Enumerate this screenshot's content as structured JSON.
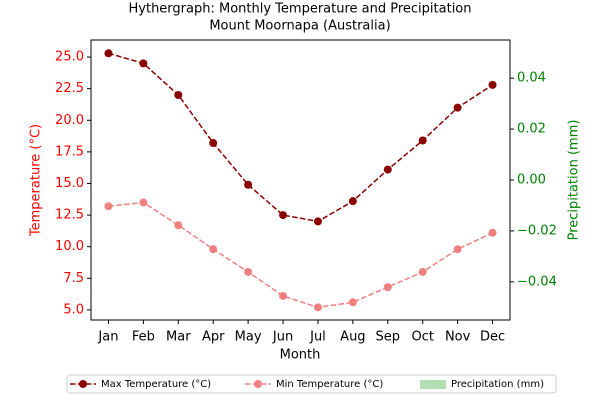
{
  "chart_data": {
    "type": "line",
    "title": "Hythergraph: Monthly Temperature and Precipitation",
    "subtitle": "Mount Moornapa (Australia)",
    "x_label": "Month",
    "y_label": "Temperature (°C)",
    "y2_label": "Precipitation (mm)",
    "y_color": "#ff0000",
    "y2_color": "#008000",
    "categories": [
      "Jan",
      "Feb",
      "Mar",
      "Apr",
      "May",
      "Jun",
      "Jul",
      "Aug",
      "Sep",
      "Oct",
      "Nov",
      "Dec"
    ],
    "series": [
      {
        "name": "Max Temperature (°C)",
        "color": "#8b0000",
        "linestyle": "dashed",
        "marker": "circle",
        "values": [
          25.3,
          24.5,
          22.0,
          18.2,
          14.9,
          12.5,
          12.0,
          13.6,
          16.1,
          18.4,
          21.0,
          22.8
        ]
      },
      {
        "name": "Min Temperature (°C)",
        "color": "#f08080",
        "linestyle": "dashed",
        "marker": "circle",
        "values": [
          13.2,
          13.5,
          11.7,
          9.8,
          8.0,
          6.1,
          5.2,
          5.6,
          6.8,
          8.0,
          9.8,
          11.1
        ]
      },
      {
        "name": "Precipitation (mm)",
        "color": "#b2dfb2",
        "type": "bar",
        "axis": "y2",
        "values": [
          0,
          0,
          0,
          0,
          0,
          0,
          0,
          0,
          0,
          0,
          0,
          0
        ]
      }
    ],
    "ylim": [
      4.2,
      26.35
    ],
    "yticks": [
      {
        "value": 5,
        "label": "5.0"
      },
      7.5,
      {
        "value": 10,
        "label": "10.0"
      },
      12.5,
      {
        "value": 15,
        "label": "15.0"
      },
      17.5,
      {
        "value": 20,
        "label": "20.0"
      },
      22.5,
      {
        "value": 25,
        "label": "25.0"
      }
    ],
    "y2lim": [
      -0.055,
      0.055
    ],
    "y2ticks": [
      {
        "value": -0.04,
        "label": "−0.04"
      },
      {
        "value": -0.02,
        "label": "−0.02"
      },
      {
        "value": 0,
        "label": "0.00"
      },
      0.02,
      0.04
    ],
    "grid": false,
    "legend": "bottom"
  }
}
